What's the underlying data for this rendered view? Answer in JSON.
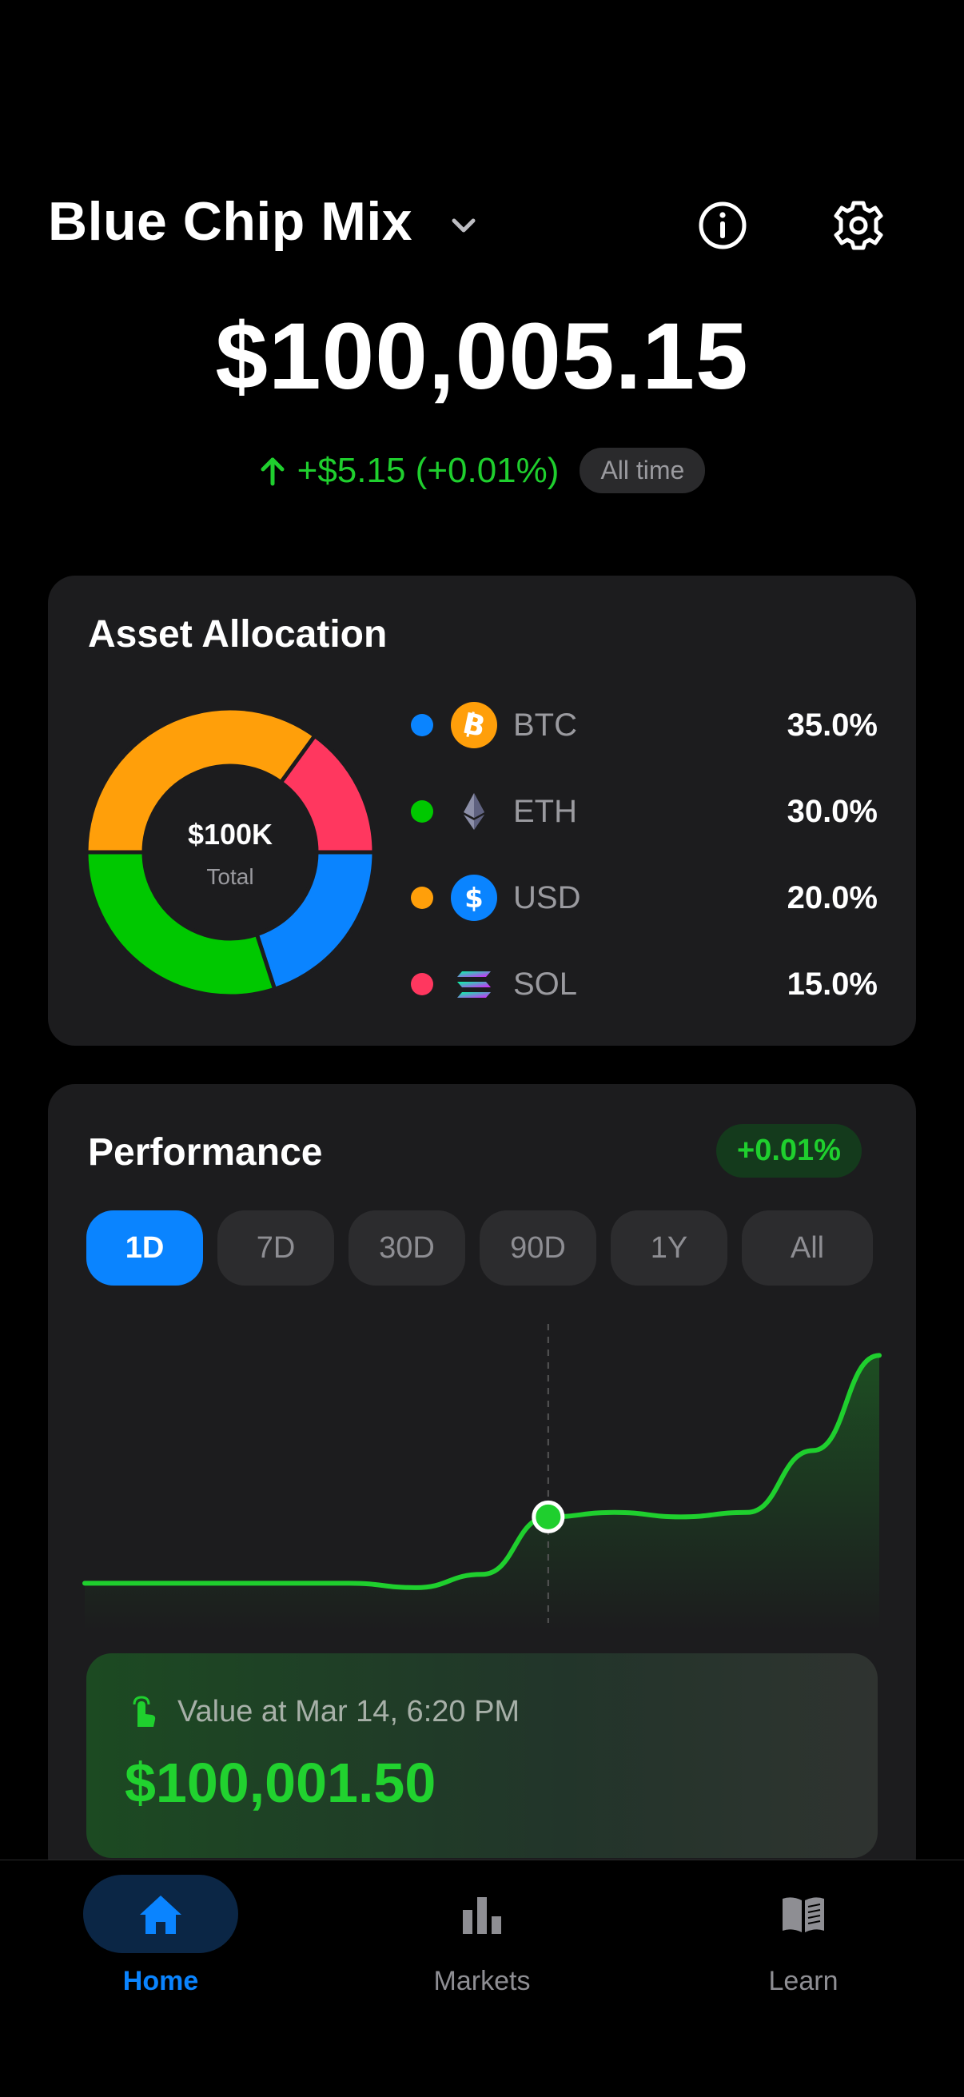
{
  "header": {
    "title": "Blue Chip Mix",
    "total_value": "$100,005.15",
    "change": "+$5.15 (+0.01%)",
    "range_badge": "All time"
  },
  "allocation": {
    "title": "Asset Allocation",
    "center_value": "$100K",
    "center_label": "Total",
    "items": [
      {
        "symbol": "BTC",
        "percent": "35.0%",
        "value": 35,
        "color": "#ff9f0a",
        "dot_color": "#0a84ff"
      },
      {
        "symbol": "ETH",
        "percent": "30.0%",
        "value": 30,
        "color": "#00c800",
        "dot_color": "#00c800"
      },
      {
        "symbol": "USD",
        "percent": "20.0%",
        "value": 20,
        "color": "#0a84ff",
        "dot_color": "#ff9f0a"
      },
      {
        "symbol": "SOL",
        "percent": "15.0%",
        "value": 15,
        "color": "#ff375f",
        "dot_color": "#ff375f"
      }
    ]
  },
  "performance": {
    "title": "Performance",
    "badge": "+0.01%",
    "tabs": [
      "1D",
      "7D",
      "30D",
      "90D",
      "1Y",
      "All"
    ],
    "active_tab": "1D",
    "selected_label": "Value at Mar 14, 6:20 PM",
    "selected_value": "$100,001.50"
  },
  "chart_data": {
    "type": "line",
    "series": [
      {
        "values": [
          100000.0,
          100000.0,
          100000.0,
          100000.0,
          100000.0,
          99999.9,
          100000.2,
          100001.5,
          100001.6,
          100001.5,
          100001.6,
          100003.0,
          100005.15
        ]
      }
    ],
    "selected_index": 7,
    "ylim": [
      99999.5,
      100005.5
    ],
    "grid": false,
    "color": "#1fcf2e"
  },
  "nav": {
    "items": [
      {
        "label": "Home",
        "icon": "home-icon",
        "active": true
      },
      {
        "label": "Markets",
        "icon": "bar-chart-icon",
        "active": false
      },
      {
        "label": "Learn",
        "icon": "book-icon",
        "active": false
      }
    ]
  }
}
